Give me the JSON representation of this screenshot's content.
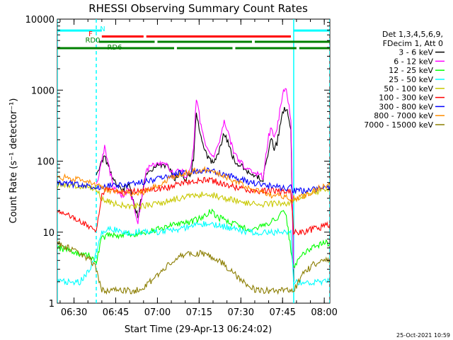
{
  "chart_data": {
    "type": "line",
    "title": "RHESSI Observing Summary Count Rates",
    "xlabel": "Start Time (29-Apr-13 06:24:02)",
    "ylabel": "Count Rate (s⁻¹ detector⁻¹)",
    "y_scale": "log",
    "ylim": [
      1,
      10000
    ],
    "xlim_minutes": [
      0,
      98
    ],
    "x_tick_labels": [
      "06:30",
      "06:45",
      "07:00",
      "07:15",
      "07:30",
      "07:45",
      "08:00"
    ],
    "x_tick_minutes": [
      6,
      21,
      36,
      51,
      66,
      81,
      96
    ],
    "y_tick_labels": [
      "1",
      "10",
      "100",
      "1000",
      "10000"
    ],
    "y_tick_values": [
      1,
      10,
      100,
      1000,
      10000
    ],
    "legend_placement": "top-right-outside",
    "legend_header": [
      "Det 1,3,4,5,6,9,",
      "FDecim 1, Att 0"
    ],
    "timestamp": "25-Oct-2021 10:59",
    "flags": [
      {
        "label": "N",
        "color": "#00ffff",
        "value": 6900,
        "segments": [
          [
            0,
            16
          ],
          [
            85,
            98
          ]
        ]
      },
      {
        "label": "F",
        "color": "#ff0000",
        "value": 5700,
        "segments": [
          [
            16,
            31
          ],
          [
            32,
            84
          ]
        ]
      },
      {
        "label": "RD0",
        "color": "#008000",
        "value": 4800,
        "segments": [
          [
            15,
            35
          ],
          [
            36,
            70
          ],
          [
            71,
            98
          ]
        ]
      },
      {
        "label": "RD6",
        "color": "#008000",
        "value": 3900,
        "segments": [
          [
            0,
            42
          ],
          [
            43,
            63
          ],
          [
            64,
            86
          ],
          [
            87,
            98
          ]
        ]
      }
    ],
    "vertical_markers": [
      {
        "x": 0,
        "color": "#00ffff",
        "style": "solid"
      },
      {
        "x": 14,
        "color": "#00ffff",
        "style": "dashed"
      },
      {
        "x": 85,
        "color": "#00ffff",
        "style": "solid"
      },
      {
        "x": 98,
        "color": "#00ffff",
        "style": "dashed"
      }
    ],
    "series": [
      {
        "name": "3 - 6 keV",
        "color": "#000000",
        "x": [
          14,
          17,
          20,
          23,
          26,
          29,
          32,
          35,
          38,
          40,
          42,
          44,
          46,
          48,
          49,
          50,
          51,
          52,
          54,
          56,
          58,
          60,
          61,
          62,
          63,
          64,
          66,
          68,
          70,
          72,
          74,
          76,
          77,
          78,
          79,
          80,
          81,
          82,
          83,
          84,
          85
        ],
        "y": [
          60,
          120,
          55,
          40,
          45,
          16,
          70,
          80,
          90,
          80,
          55,
          70,
          55,
          70,
          110,
          500,
          300,
          180,
          110,
          95,
          130,
          250,
          200,
          150,
          120,
          100,
          85,
          75,
          65,
          60,
          55,
          150,
          200,
          150,
          180,
          300,
          500,
          550,
          450,
          300,
          2
        ]
      },
      {
        "name": "6 - 12 keV",
        "color": "#ff00ff",
        "x": [
          14,
          17,
          20,
          23,
          26,
          29,
          32,
          35,
          38,
          40,
          42,
          44,
          46,
          48,
          49,
          50,
          51,
          52,
          54,
          56,
          58,
          60,
          61,
          62,
          63,
          64,
          66,
          68,
          70,
          72,
          74,
          76,
          77,
          78,
          79,
          80,
          81,
          82,
          83,
          84,
          85
        ],
        "y": [
          45,
          160,
          45,
          32,
          40,
          14,
          75,
          90,
          95,
          85,
          60,
          80,
          60,
          80,
          150,
          800,
          450,
          250,
          140,
          110,
          170,
          380,
          300,
          200,
          150,
          120,
          95,
          80,
          70,
          65,
          60,
          230,
          300,
          220,
          280,
          500,
          900,
          1100,
          700,
          400,
          3
        ]
      },
      {
        "name": "12 - 25 keV",
        "color": "#00ff00",
        "x": [
          0,
          4,
          8,
          12,
          14,
          16,
          18,
          20,
          24,
          28,
          32,
          36,
          40,
          44,
          48,
          52,
          55,
          58,
          62,
          66,
          70,
          74,
          78,
          82,
          85,
          88,
          92,
          96,
          98
        ],
        "y": [
          6,
          5.5,
          5,
          4.5,
          4,
          8,
          9,
          9,
          9,
          9.5,
          10,
          11,
          12,
          13,
          14,
          16,
          20,
          16,
          14,
          12,
          11,
          12,
          15,
          20,
          3,
          5,
          6,
          7,
          7
        ]
      },
      {
        "name": "25 - 50 keV",
        "color": "#00ffff",
        "x": [
          0,
          4,
          8,
          12,
          14,
          16,
          18,
          20,
          24,
          28,
          32,
          36,
          40,
          44,
          48,
          52,
          56,
          60,
          64,
          68,
          72,
          76,
          80,
          84,
          85,
          88,
          92,
          96,
          98
        ],
        "y": [
          2,
          2,
          2,
          3,
          5,
          10,
          11,
          11,
          10,
          10,
          10,
          10,
          10.5,
          11,
          12,
          13,
          13,
          12,
          11,
          10,
          10,
          10,
          10,
          10,
          2,
          2,
          2,
          2,
          2
        ]
      },
      {
        "name": "50 - 100 keV",
        "color": "#c8c800",
        "x": [
          0,
          4,
          8,
          12,
          14,
          16,
          18,
          20,
          24,
          28,
          32,
          36,
          40,
          44,
          48,
          52,
          56,
          60,
          64,
          68,
          72,
          76,
          80,
          84,
          85,
          88,
          92,
          96,
          98
        ],
        "y": [
          45,
          45,
          45,
          42,
          40,
          30,
          28,
          25,
          24,
          23,
          24,
          25,
          28,
          30,
          32,
          34,
          33,
          30,
          28,
          26,
          25,
          25,
          25,
          26,
          28,
          32,
          36,
          40,
          42
        ]
      },
      {
        "name": "100 - 300 keV",
        "color": "#ff0000",
        "x": [
          0,
          4,
          8,
          12,
          14,
          16,
          18,
          20,
          24,
          28,
          32,
          36,
          40,
          44,
          48,
          52,
          56,
          60,
          64,
          68,
          72,
          76,
          80,
          84,
          85,
          88,
          92,
          96,
          98
        ],
        "y": [
          20,
          17,
          14,
          12,
          10,
          35,
          40,
          40,
          38,
          37,
          38,
          40,
          43,
          48,
          52,
          55,
          53,
          48,
          43,
          40,
          38,
          38,
          38,
          38,
          10,
          10,
          11,
          12,
          13
        ]
      },
      {
        "name": "300 - 800 keV",
        "color": "#0000ff",
        "x": [
          0,
          4,
          8,
          12,
          14,
          16,
          18,
          20,
          24,
          28,
          32,
          36,
          40,
          44,
          48,
          52,
          56,
          60,
          64,
          68,
          72,
          76,
          80,
          84,
          85,
          88,
          92,
          96,
          98
        ],
        "y": [
          50,
          48,
          46,
          44,
          42,
          45,
          45,
          45,
          46,
          48,
          52,
          56,
          62,
          68,
          72,
          75,
          72,
          65,
          58,
          52,
          48,
          45,
          43,
          42,
          38,
          38,
          40,
          42,
          44
        ]
      },
      {
        "name": "800 - 7000 keV",
        "color": "#ff8c00",
        "x": [
          0,
          4,
          8,
          12,
          14,
          16,
          18,
          20,
          24,
          28,
          32,
          36,
          40,
          44,
          48,
          52,
          56,
          60,
          64,
          68,
          72,
          76,
          80,
          84,
          85,
          88,
          92,
          96,
          98
        ],
        "y": [
          60,
          58,
          56,
          52,
          48,
          42,
          40,
          38,
          36,
          35,
          38,
          45,
          55,
          65,
          72,
          75,
          72,
          62,
          52,
          44,
          38,
          34,
          32,
          30,
          30,
          32,
          38,
          44,
          46
        ]
      },
      {
        "name": "7000 - 15000 keV",
        "color": "#8b7d00",
        "x": [
          0,
          4,
          8,
          12,
          14,
          16,
          18,
          20,
          24,
          28,
          32,
          36,
          40,
          44,
          48,
          52,
          56,
          60,
          64,
          68,
          72,
          76,
          80,
          84,
          85,
          88,
          92,
          96,
          98
        ],
        "y": [
          7,
          6,
          5,
          4,
          3,
          1.5,
          1.5,
          1.5,
          1.5,
          1.5,
          1.8,
          2.5,
          3.5,
          4.5,
          5,
          5,
          4.5,
          3.5,
          2.5,
          1.8,
          1.5,
          1.5,
          1.5,
          1.5,
          1.5,
          2.5,
          3.5,
          4,
          4
        ]
      }
    ]
  }
}
